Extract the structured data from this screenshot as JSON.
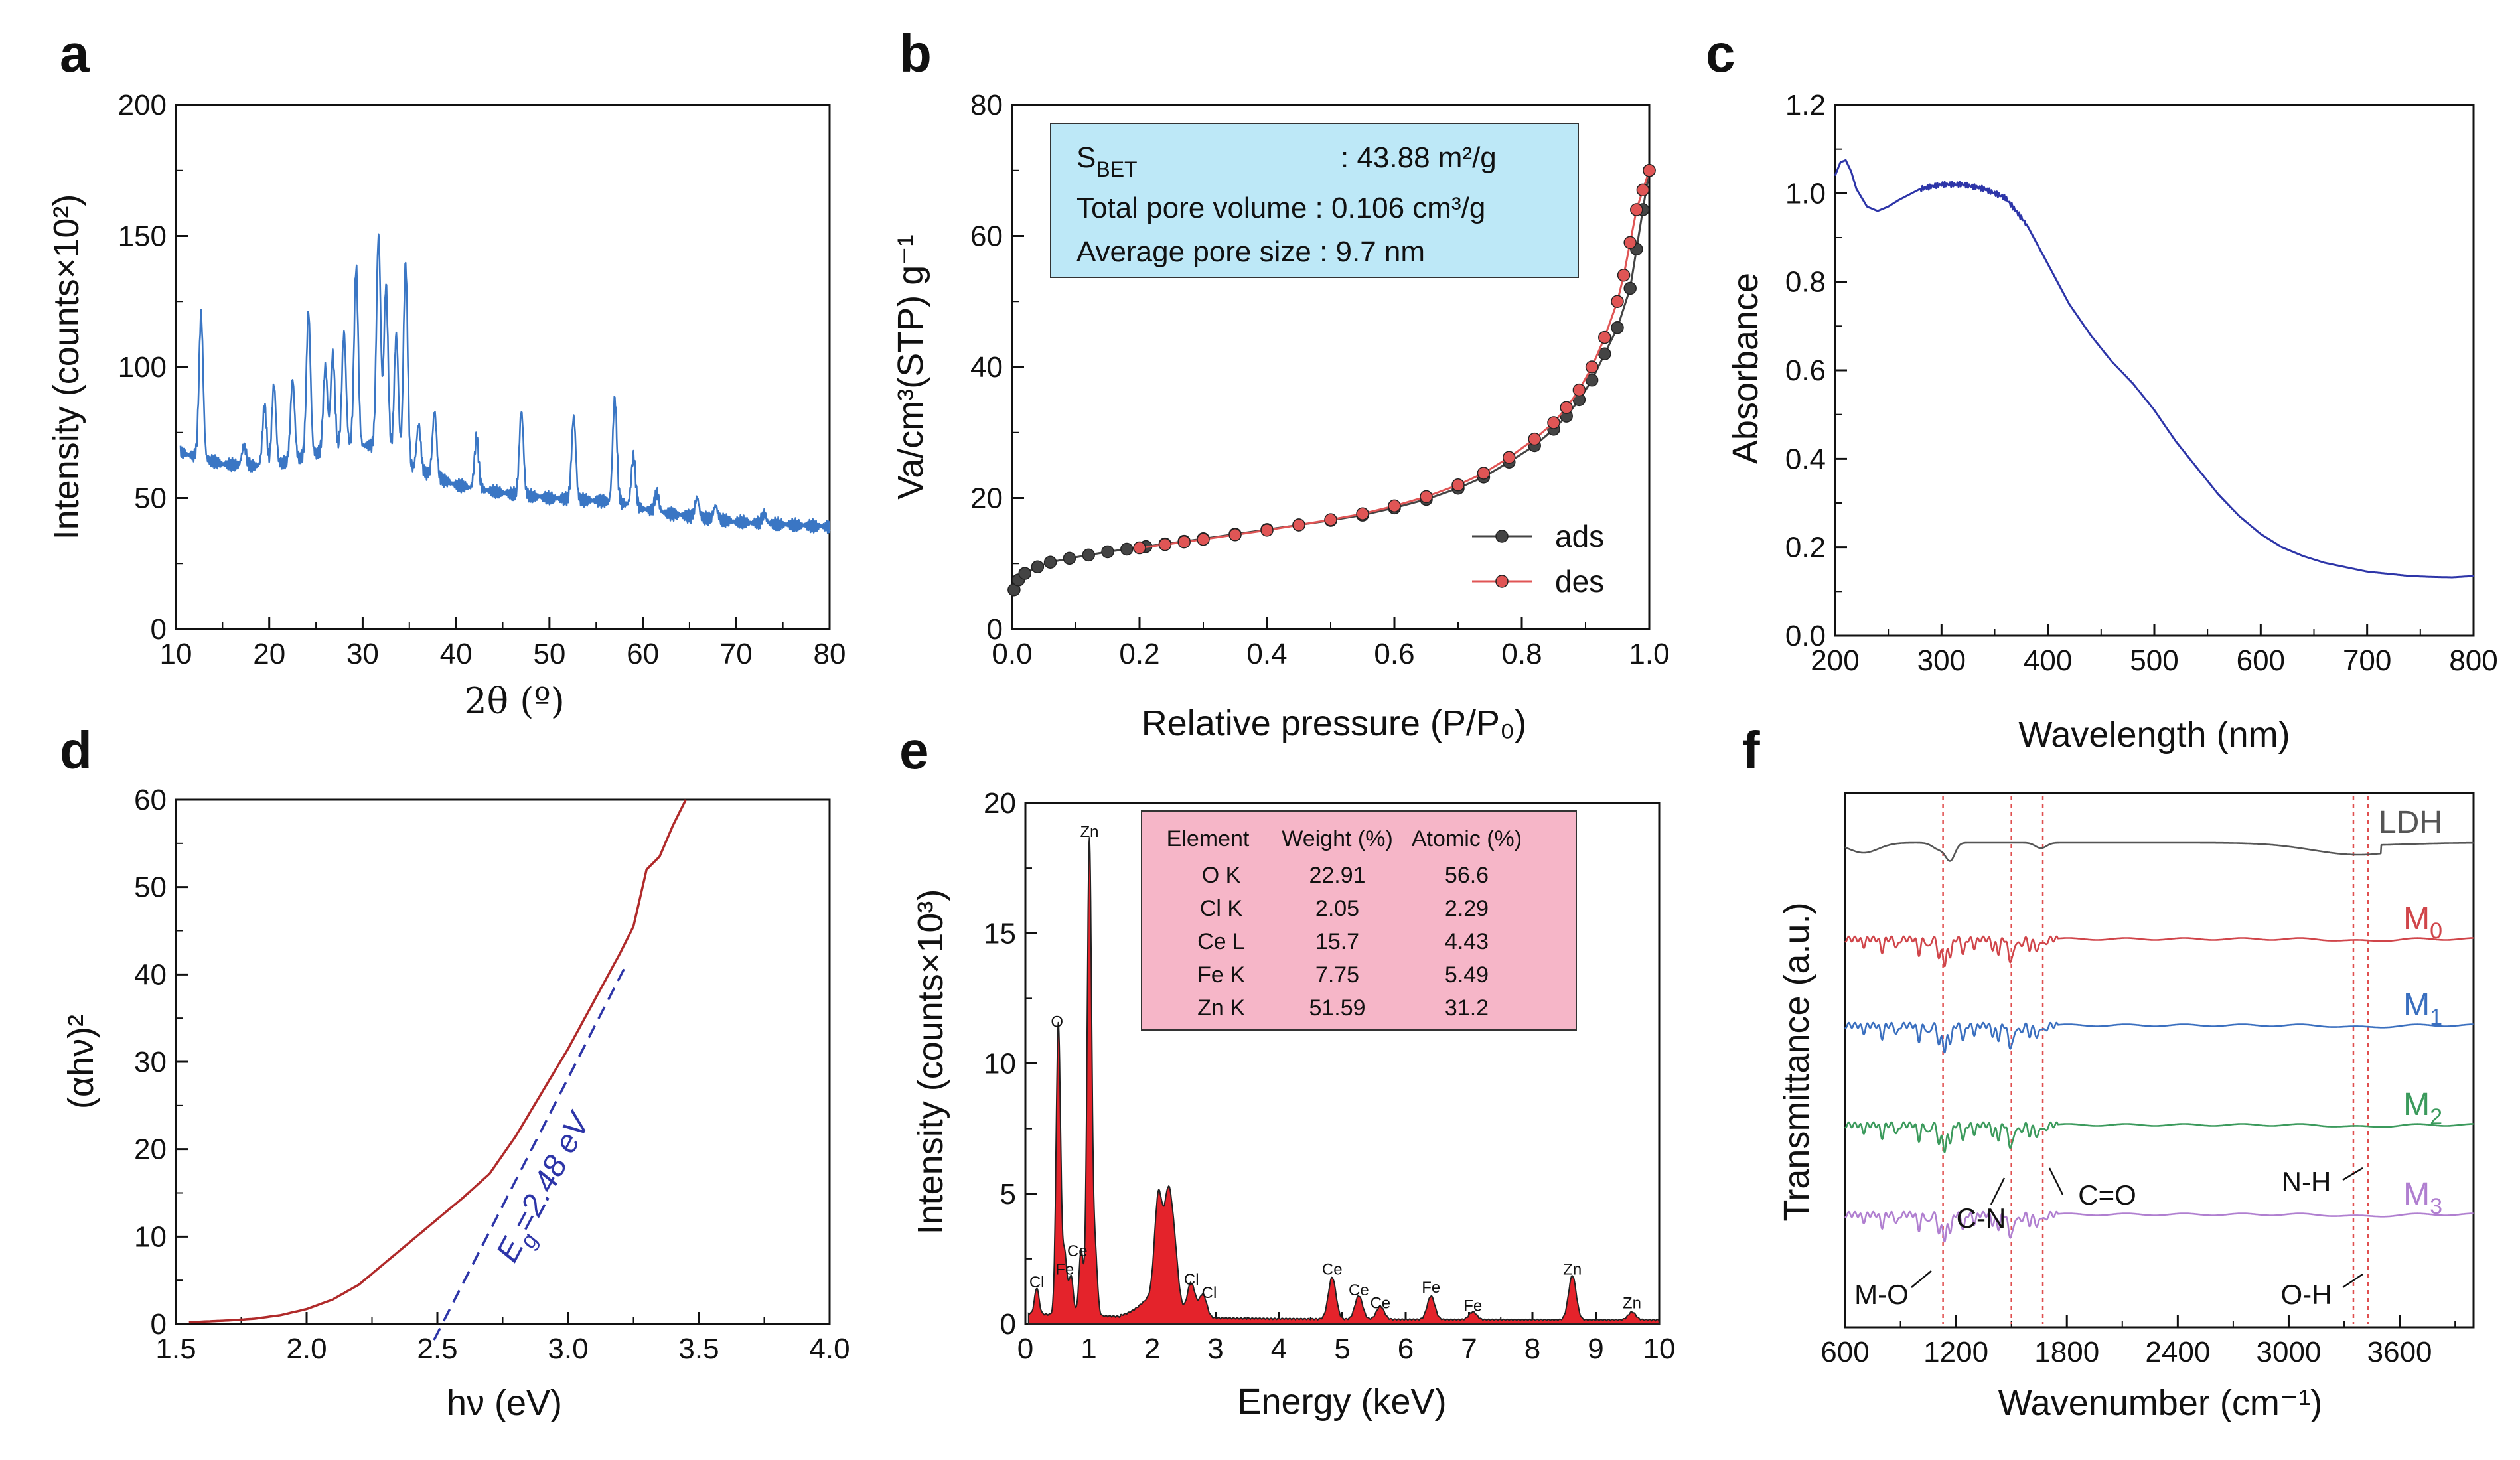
{
  "colors": {
    "axis": "#111111",
    "xrd": "#3a76c4",
    "ads": "#444444",
    "des": "#e05555",
    "uv": "#2d35a8",
    "tauc": "#b02a2a",
    "tauc_fit": "#2d35a8",
    "eds_fill": "#e4232b",
    "bet_box": "#bde8f7",
    "eds_box": "#f6b6c8",
    "m3": "#b07fd0",
    "m2": "#3b9a5c",
    "m1": "#3a6fbf",
    "m0": "#d0454a",
    "ldh": "#555555",
    "guide": "#e05050"
  },
  "panel_letters": [
    "a",
    "b",
    "c",
    "d",
    "e",
    "f"
  ],
  "chart_data": [
    {
      "id": "a",
      "type": "line",
      "xlabel": "2θ (º)",
      "ylabel": "Intensity (counts×10²)",
      "xlim": [
        10,
        80
      ],
      "ylim": [
        0,
        200
      ],
      "xticks": [
        10,
        20,
        30,
        40,
        50,
        60,
        70,
        80
      ],
      "yticks": [
        0,
        50,
        100,
        150,
        200
      ],
      "baseline": [
        [
          10,
          68
        ],
        [
          15,
          63
        ],
        [
          20,
          62
        ],
        [
          25,
          67
        ],
        [
          28,
          70
        ],
        [
          32,
          70
        ],
        [
          35,
          62
        ],
        [
          40,
          55
        ],
        [
          45,
          52
        ],
        [
          50,
          50
        ],
        [
          55,
          49
        ],
        [
          58,
          48
        ],
        [
          61,
          45
        ],
        [
          65,
          43
        ],
        [
          70,
          41
        ],
        [
          75,
          40
        ],
        [
          80,
          39
        ]
      ],
      "peaks": [
        [
          12.7,
          120
        ],
        [
          17.3,
          70
        ],
        [
          19.5,
          85
        ],
        [
          20.5,
          93
        ],
        [
          22.5,
          95
        ],
        [
          24.2,
          121
        ],
        [
          26,
          100
        ],
        [
          26.8,
          105
        ],
        [
          28,
          113
        ],
        [
          29.3,
          138
        ],
        [
          31.7,
          150
        ],
        [
          32.5,
          131
        ],
        [
          33.6,
          112
        ],
        [
          34.6,
          139
        ],
        [
          36,
          78
        ],
        [
          37.7,
          83
        ],
        [
          42.2,
          73
        ],
        [
          47,
          83
        ],
        [
          52.6,
          81
        ],
        [
          57,
          88
        ],
        [
          59,
          66
        ],
        [
          61.5,
          52
        ],
        [
          65.8,
          50
        ],
        [
          67.8,
          47
        ],
        [
          73,
          44
        ]
      ]
    },
    {
      "id": "b",
      "type": "line",
      "xlabel": "Relative pressure (P/P₀)",
      "ylabel": "Va/cm³(STP) g⁻¹",
      "xlim": [
        0,
        1.0
      ],
      "ylim": [
        0,
        80
      ],
      "xticks": [
        0.0,
        0.2,
        0.4,
        0.6,
        0.8,
        1.0
      ],
      "yticks": [
        0,
        20,
        40,
        60,
        80
      ],
      "series": [
        {
          "name": "ads",
          "x": [
            0.003,
            0.01,
            0.02,
            0.04,
            0.06,
            0.09,
            0.12,
            0.15,
            0.18,
            0.21,
            0.24,
            0.27,
            0.3,
            0.35,
            0.4,
            0.45,
            0.5,
            0.55,
            0.6,
            0.65,
            0.7,
            0.74,
            0.78,
            0.82,
            0.85,
            0.87,
            0.89,
            0.91,
            0.93,
            0.95,
            0.97,
            0.98,
            0.99,
            1.0
          ],
          "y": [
            6,
            7.5,
            8.5,
            9.5,
            10.2,
            10.8,
            11.3,
            11.8,
            12.2,
            12.6,
            13.0,
            13.4,
            13.8,
            14.5,
            15.2,
            15.9,
            16.6,
            17.4,
            18.5,
            19.8,
            21.5,
            23.2,
            25.5,
            28,
            30.5,
            32.5,
            35,
            38,
            42,
            46,
            52,
            58,
            64,
            70
          ]
        },
        {
          "name": "des",
          "x": [
            0.2,
            0.24,
            0.27,
            0.3,
            0.35,
            0.4,
            0.45,
            0.5,
            0.55,
            0.6,
            0.65,
            0.7,
            0.74,
            0.78,
            0.82,
            0.85,
            0.87,
            0.89,
            0.91,
            0.93,
            0.95,
            0.96,
            0.97,
            0.98,
            0.99,
            1.0
          ],
          "y": [
            12.4,
            12.9,
            13.3,
            13.7,
            14.4,
            15.1,
            15.9,
            16.7,
            17.6,
            18.8,
            20.2,
            22.0,
            23.8,
            26.2,
            29,
            31.5,
            33.8,
            36.5,
            40,
            44.5,
            50,
            54,
            59,
            64,
            67,
            70
          ]
        }
      ],
      "legend": [
        "ads",
        "des"
      ],
      "info_box": {
        "line1_label": "S",
        "line1_sub": "BET",
        "line1_value": ": 43.88  m²/g",
        "line2": "Total pore volume : 0.106 cm³/g",
        "line3": "Average pore size : 9.7 nm"
      }
    },
    {
      "id": "c",
      "type": "line",
      "xlabel": "Wavelength (nm)",
      "ylabel": "Absorbance",
      "xlim": [
        200,
        800
      ],
      "ylim": [
        0.0,
        1.2
      ],
      "xticks": [
        200,
        300,
        400,
        500,
        600,
        700,
        800
      ],
      "yticks": [
        0.0,
        0.2,
        0.4,
        0.6,
        0.8,
        1.0,
        1.2
      ],
      "x": [
        200,
        205,
        210,
        215,
        220,
        230,
        240,
        250,
        260,
        280,
        300,
        320,
        340,
        360,
        380,
        400,
        420,
        440,
        460,
        480,
        500,
        520,
        540,
        560,
        580,
        600,
        620,
        640,
        660,
        680,
        700,
        720,
        740,
        760,
        780,
        800
      ],
      "y": [
        1.04,
        1.07,
        1.075,
        1.05,
        1.01,
        0.97,
        0.96,
        0.97,
        0.985,
        1.01,
        1.02,
        1.02,
        1.01,
        0.99,
        0.93,
        0.84,
        0.75,
        0.68,
        0.62,
        0.57,
        0.51,
        0.44,
        0.38,
        0.32,
        0.27,
        0.23,
        0.2,
        0.18,
        0.165,
        0.155,
        0.145,
        0.14,
        0.135,
        0.133,
        0.132,
        0.135
      ]
    },
    {
      "id": "d",
      "type": "line",
      "xlabel": "hν (eV)",
      "ylabel": "(αhν)²",
      "xlim": [
        1.5,
        4.0
      ],
      "ylim": [
        0,
        60
      ],
      "xticks": [
        1.5,
        2.0,
        2.5,
        3.0,
        3.5,
        4.0
      ],
      "yticks": [
        0,
        10,
        20,
        30,
        40,
        50,
        60
      ],
      "x": [
        1.55,
        1.7,
        1.8,
        1.9,
        2.0,
        2.1,
        2.2,
        2.3,
        2.4,
        2.5,
        2.6,
        2.7,
        2.8,
        2.9,
        3.0,
        3.1,
        3.2,
        3.25,
        3.3,
        3.35,
        3.4,
        3.45
      ],
      "y": [
        0.2,
        0.4,
        0.6,
        1.0,
        1.7,
        2.8,
        4.5,
        7.0,
        9.5,
        12.0,
        14.5,
        17.2,
        21.5,
        26.5,
        31.5,
        37.0,
        42.5,
        45.5,
        52.0,
        53.5,
        57.0,
        60.0
      ],
      "fit_line": {
        "x": [
          2.45,
          3.22
        ],
        "y": [
          -4,
          41
        ]
      },
      "annotation": "E",
      "annotation_sub": "g",
      "annotation_value": "=2.48 eV"
    },
    {
      "id": "e",
      "type": "area",
      "xlabel": "Energy (keV)",
      "ylabel": "Intensity (counts×10³)",
      "xlim": [
        0,
        10
      ],
      "ylim": [
        0,
        20
      ],
      "xticks": [
        0,
        1,
        2,
        3,
        4,
        5,
        6,
        7,
        8,
        9,
        10
      ],
      "yticks": [
        0,
        5,
        10,
        15,
        20
      ],
      "peaks": [
        [
          0.18,
          1.0
        ],
        [
          0.52,
          11.2
        ],
        [
          0.62,
          2.3
        ],
        [
          0.72,
          1.5
        ],
        [
          0.88,
          2.5
        ],
        [
          1.01,
          18.3
        ],
        [
          1.1,
          2.5
        ],
        [
          2.1,
          3.8
        ],
        [
          2.25,
          3.6
        ],
        [
          2.35,
          2.0
        ],
        [
          2.62,
          1.3
        ],
        [
          2.8,
          0.9
        ],
        [
          4.84,
          1.6
        ],
        [
          5.26,
          0.9
        ],
        [
          5.6,
          0.5
        ],
        [
          6.4,
          0.9
        ],
        [
          7.06,
          0.3
        ],
        [
          8.63,
          1.7
        ],
        [
          9.57,
          0.3
        ]
      ],
      "peak_labels": [
        {
          "text": "Zn",
          "x": 1.01,
          "y": 18.7
        },
        {
          "text": "O",
          "x": 0.5,
          "y": 11.4
        },
        {
          "text": "Ce",
          "x": 0.82,
          "y": 2.6
        },
        {
          "text": "Fe",
          "x": 0.62,
          "y": 1.9
        },
        {
          "text": "Cl",
          "x": 0.18,
          "y": 1.4
        },
        {
          "text": "Cl",
          "x": 2.62,
          "y": 1.5
        },
        {
          "text": "Cl",
          "x": 2.9,
          "y": 1.0
        },
        {
          "text": "Ce",
          "x": 4.84,
          "y": 1.9
        },
        {
          "text": "Ce",
          "x": 5.26,
          "y": 1.1
        },
        {
          "text": "Ce",
          "x": 5.6,
          "y": 0.6
        },
        {
          "text": "Fe",
          "x": 6.4,
          "y": 1.2
        },
        {
          "text": "Fe",
          "x": 7.06,
          "y": 0.5
        },
        {
          "text": "Zn",
          "x": 8.63,
          "y": 1.9
        },
        {
          "text": "Zn",
          "x": 9.57,
          "y": 0.6
        }
      ],
      "table": {
        "headers": [
          "Element",
          "Weight (%)",
          "Atomic (%)"
        ],
        "rows": [
          [
            "O K",
            "22.91",
            "56.6"
          ],
          [
            "Cl K",
            "2.05",
            "2.29"
          ],
          [
            "Ce L",
            "15.7",
            "4.43"
          ],
          [
            "Fe K",
            "7.75",
            "5.49"
          ],
          [
            "Zn K",
            "51.59",
            "31.2"
          ]
        ]
      }
    },
    {
      "id": "f",
      "type": "line",
      "xlabel": "Wavenumber (cm⁻¹)",
      "ylabel": "Transmittance (a.u.)",
      "xlim": [
        600,
        4000
      ],
      "xticks": [
        600,
        1200,
        1800,
        2400,
        3000,
        3600
      ],
      "guide_lines": [
        1130,
        1500,
        1670,
        3350,
        3430
      ],
      "series": [
        {
          "name": "M",
          "sub": "3",
          "color_key": "m3",
          "offset": 4
        },
        {
          "name": "M",
          "sub": "2",
          "color_key": "m2",
          "offset": 3
        },
        {
          "name": "M",
          "sub": "1",
          "color_key": "m1",
          "offset": 2
        },
        {
          "name": "M",
          "sub": "0",
          "color_key": "m0",
          "offset": 1
        },
        {
          "name": "LDH",
          "sub": "",
          "color_key": "ldh",
          "offset": 0
        }
      ],
      "annotations": [
        "C-N",
        "C=O",
        "N-H",
        "M-O",
        "O-H"
      ]
    }
  ]
}
